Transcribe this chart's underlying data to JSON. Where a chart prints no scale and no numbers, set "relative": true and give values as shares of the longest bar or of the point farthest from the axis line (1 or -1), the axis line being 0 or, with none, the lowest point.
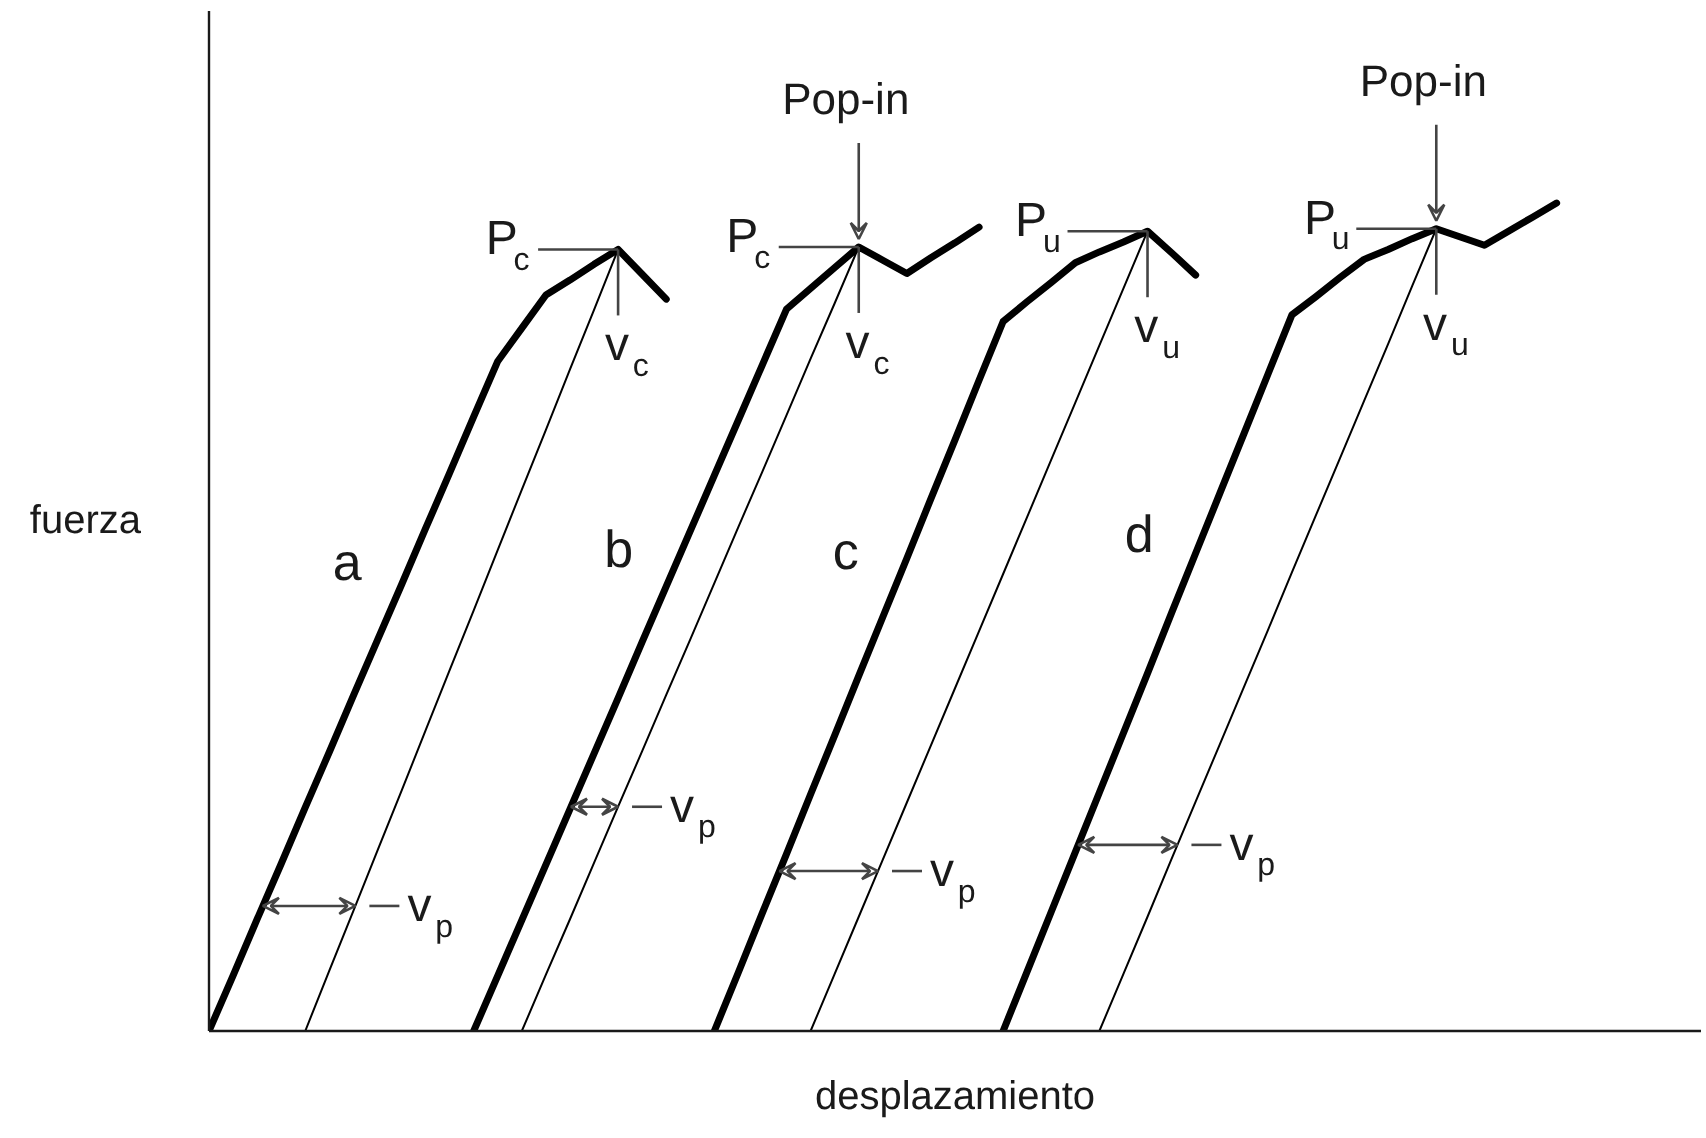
{
  "chart_data": {
    "type": "line",
    "relative": true,
    "xlabel": "desplazamiento",
    "ylabel": "fuerza",
    "legend": false,
    "line_style": "solid",
    "categories": [
      null,
      null,
      null,
      null,
      null,
      null,
      null,
      null,
      null,
      null,
      null,
      null,
      null,
      null,
      null,
      null,
      null,
      null,
      null,
      null,
      null,
      null,
      null,
      null,
      null,
      null,
      null,
      null,
      null,
      null,
      null,
      null,
      null,
      null,
      null,
      null,
      null,
      null,
      null,
      null,
      null,
      null,
      null,
      null,
      null,
      null,
      null,
      null,
      null,
      null,
      null,
      null,
      null,
      null,
      null,
      null,
      null,
      null,
      null,
      null,
      null,
      null,
      null
    ],
    "series": [
      {
        "name": "a",
        "color": "#000000",
        "values": [
          0,
          0.067,
          0.135,
          0.202,
          0.27,
          0.337,
          0.405,
          0.472,
          0.539,
          0.607,
          0.674,
          0.742,
          0.809,
          0.849,
          0.889,
          0.907,
          0.926,
          0.944,
          0.914,
          0.884,
          null,
          null,
          null,
          null,
          null,
          null,
          null,
          null,
          null,
          null,
          null,
          null,
          null,
          null,
          null,
          null,
          null,
          null,
          null,
          null,
          null,
          null,
          null,
          null,
          null,
          null,
          null,
          null,
          null,
          null,
          null,
          null,
          null,
          null,
          null,
          null,
          null,
          null,
          null,
          null,
          null,
          null,
          null
        ]
      },
      {
        "color": "#000000",
        "values": [
          null,
          null,
          null,
          null,
          0,
          0.073,
          0.145,
          0.218,
          0.29,
          0.363,
          0.436,
          0.508,
          0.581,
          0.654,
          0.726,
          0.799,
          0.871,
          0.944,
          null,
          null,
          null,
          null,
          null,
          null,
          null,
          null,
          null,
          null,
          null,
          null,
          null,
          null,
          null,
          null,
          null,
          null,
          null,
          null,
          null,
          null,
          null,
          null,
          null,
          null,
          null,
          null,
          null,
          null,
          null,
          null,
          null,
          null,
          null,
          null,
          null,
          null,
          null,
          null,
          null,
          null,
          null,
          null,
          null
        ]
      },
      {
        "name": "b",
        "color": "#000000",
        "values": [
          null,
          null,
          null,
          null,
          null,
          null,
          null,
          null,
          null,
          null,
          null,
          0,
          0.067,
          0.134,
          0.201,
          0.268,
          0.335,
          0.402,
          0.47,
          0.537,
          0.604,
          0.671,
          0.738,
          0.805,
          0.872,
          0.897,
          0.922,
          0.947,
          0.931,
          0.915,
          0.934,
          0.952,
          0.971,
          null,
          null,
          null,
          null,
          null,
          null,
          null,
          null,
          null,
          null,
          null,
          null,
          null,
          null,
          null,
          null,
          null,
          null,
          null,
          null,
          null,
          null,
          null,
          null,
          null,
          null,
          null,
          null,
          null,
          null
        ]
      },
      {
        "color": "#000000",
        "values": [
          null,
          null,
          null,
          null,
          null,
          null,
          null,
          null,
          null,
          null,
          null,
          null,
          null,
          0,
          0.068,
          0.135,
          0.203,
          0.271,
          0.338,
          0.406,
          0.473,
          0.541,
          0.609,
          0.676,
          0.744,
          0.812,
          0.879,
          0.947,
          null,
          null,
          null,
          null,
          null,
          null,
          null,
          null,
          null,
          null,
          null,
          null,
          null,
          null,
          null,
          null,
          null,
          null,
          null,
          null,
          null,
          null,
          null,
          null,
          null,
          null,
          null,
          null,
          null,
          null,
          null,
          null,
          null,
          null,
          null
        ]
      },
      {
        "name": "c",
        "color": "#000000",
        "values": [
          null,
          null,
          null,
          null,
          null,
          null,
          null,
          null,
          null,
          null,
          null,
          null,
          null,
          null,
          null,
          null,
          null,
          null,
          null,
          null,
          null,
          0,
          0.071,
          0.143,
          0.214,
          0.286,
          0.357,
          0.429,
          0.5,
          0.571,
          0.643,
          0.714,
          0.786,
          0.857,
          0.881,
          0.904,
          0.928,
          0.941,
          0.953,
          0.966,
          0.94,
          0.913,
          null,
          null,
          null,
          null,
          null,
          null,
          null,
          null,
          null,
          null,
          null,
          null,
          null,
          null,
          null,
          null,
          null,
          null,
          null,
          null,
          null
        ]
      },
      {
        "color": "#000000",
        "values": [
          null,
          null,
          null,
          null,
          null,
          null,
          null,
          null,
          null,
          null,
          null,
          null,
          null,
          null,
          null,
          null,
          null,
          null,
          null,
          null,
          null,
          null,
          null,
          null,
          null,
          0,
          0.069,
          0.138,
          0.207,
          0.276,
          0.345,
          0.414,
          0.483,
          0.552,
          0.621,
          0.69,
          0.759,
          0.828,
          0.897,
          0.966,
          null,
          null,
          null,
          null,
          null,
          null,
          null,
          null,
          null,
          null,
          null,
          null,
          null,
          null,
          null,
          null,
          null,
          null,
          null,
          null,
          null,
          null,
          null
        ]
      },
      {
        "name": "d",
        "color": "#000000",
        "values": [
          null,
          null,
          null,
          null,
          null,
          null,
          null,
          null,
          null,
          null,
          null,
          null,
          null,
          null,
          null,
          null,
          null,
          null,
          null,
          null,
          null,
          null,
          null,
          null,
          null,
          null,
          null,
          null,
          null,
          null,
          null,
          null,
          null,
          0,
          0.072,
          0.144,
          0.216,
          0.288,
          0.36,
          0.432,
          0.505,
          0.577,
          0.649,
          0.721,
          0.793,
          0.865,
          0.887,
          0.91,
          0.932,
          0.944,
          0.957,
          0.969,
          0.959,
          0.949,
          0.966,
          0.983,
          1,
          null,
          null,
          null,
          null,
          null,
          null
        ]
      },
      {
        "color": "#000000",
        "values": [
          null,
          null,
          null,
          null,
          null,
          null,
          null,
          null,
          null,
          null,
          null,
          null,
          null,
          null,
          null,
          null,
          null,
          null,
          null,
          null,
          null,
          null,
          null,
          null,
          null,
          null,
          null,
          null,
          null,
          null,
          null,
          null,
          null,
          null,
          null,
          null,
          null,
          0,
          0.069,
          0.138,
          0.208,
          0.277,
          0.346,
          0.415,
          0.484,
          0.554,
          0.623,
          0.692,
          0.761,
          0.83,
          0.9,
          0.969,
          null,
          null,
          null,
          null,
          null,
          null,
          null,
          null,
          null,
          null,
          null
        ]
      }
    ],
    "annotations": [
      "P$_{c}$",
      {
        "text": "v$_{c}$",
        "y": 0.944
      },
      {
        "text": "Pop-in",
        "y": 0.947
      },
      "P$_{c}$",
      {
        "text": "v$_{c}$",
        "y": 0.947
      },
      "P$_{u}$",
      {
        "text": "v$_{u}$",
        "y": 0.966
      },
      {
        "text": "Pop-in",
        "y": 0.969
      },
      "P$_{u}$",
      {
        "text": "v$_{u}$",
        "y": 0.969
      },
      "v$_{p}$",
      "v$_{p}$",
      "v$_{p}$",
      "v$_{p}$"
    ]
  }
}
